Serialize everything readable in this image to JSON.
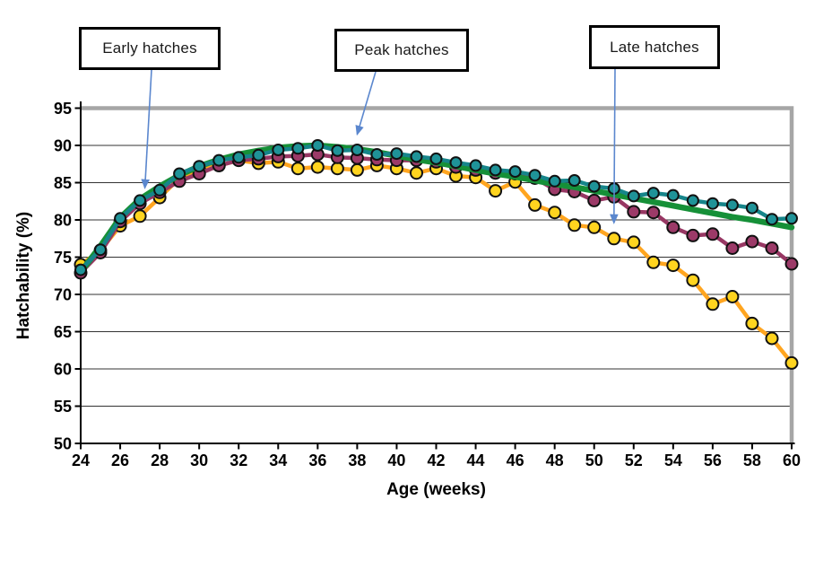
{
  "chart_data": {
    "type": "line",
    "title": "",
    "xlabel": "Age (weeks)",
    "ylabel": "Hatchability (%)",
    "xlim": [
      24,
      60
    ],
    "ylim": [
      50,
      95
    ],
    "x_ticks": [
      24,
      26,
      28,
      30,
      32,
      34,
      36,
      38,
      40,
      42,
      44,
      46,
      48,
      50,
      52,
      54,
      56,
      58,
      60
    ],
    "y_ticks": [
      50,
      55,
      60,
      65,
      70,
      75,
      80,
      85,
      90,
      95
    ],
    "grid": true,
    "legend": "none",
    "axis_color": "#000000",
    "plot_border_color": "#A6A6A6",
    "annotation_arrow_color": "#5B87CE",
    "x": [
      24,
      25,
      26,
      27,
      28,
      29,
      30,
      31,
      32,
      33,
      34,
      35,
      36,
      37,
      38,
      39,
      40,
      41,
      42,
      43,
      44,
      45,
      46,
      47,
      48,
      49,
      50,
      51,
      52,
      53,
      54,
      55,
      56,
      57,
      58,
      59,
      60
    ],
    "series": [
      {
        "name": "gold-circle-series",
        "line_color": "#FFA51F",
        "marker_fill": "#FFD41F",
        "line_width": 4.5,
        "marker_radius": 6.5,
        "values": [
          74.0,
          75.9,
          79.2,
          80.5,
          83.0,
          85.6,
          86.8,
          87.3,
          88.0,
          87.6,
          87.8,
          86.9,
          87.1,
          86.9,
          86.7,
          87.3,
          86.9,
          86.3,
          86.9,
          85.9,
          85.7,
          83.9,
          85.1,
          82.0,
          81.0,
          79.3,
          79.0,
          77.5,
          77.0,
          74.3,
          73.9,
          71.9,
          68.7,
          69.7,
          66.1,
          64.1,
          60.8
        ]
      },
      {
        "name": "plum-circle-series",
        "line_color": "#973763",
        "marker_fill": "#9C3A68",
        "line_width": 4.5,
        "marker_radius": 6.5,
        "values": [
          72.9,
          75.6,
          79.8,
          82.2,
          83.7,
          85.2,
          86.2,
          87.3,
          88.0,
          88.2,
          88.5,
          88.6,
          88.8,
          88.4,
          88.3,
          88.1,
          88.0,
          88.0,
          87.8,
          87.1,
          86.7,
          86.3,
          86.2,
          85.6,
          84.1,
          83.8,
          82.6,
          83.1,
          81.1,
          81.0,
          79.0,
          77.9,
          78.1,
          76.2,
          77.1,
          76.2,
          74.1
        ]
      },
      {
        "name": "green-trend-line",
        "line_color": "#169038",
        "marker_fill": null,
        "line_width": 6.5,
        "marker_radius": 0,
        "values": [
          73.0,
          76.5,
          80.3,
          82.8,
          84.5,
          86.0,
          87.2,
          88.1,
          88.8,
          89.3,
          89.7,
          89.9,
          90.0,
          89.8,
          89.5,
          89.1,
          88.6,
          88.1,
          87.7,
          87.2,
          86.7,
          86.2,
          85.8,
          85.3,
          84.8,
          84.4,
          83.9,
          83.4,
          82.9,
          82.4,
          81.9,
          81.4,
          80.9,
          80.4,
          80.0,
          79.5,
          79.0
        ]
      },
      {
        "name": "teal-circle-series",
        "line_color": "#16858A",
        "marker_fill": "#1F9398",
        "line_width": 4.5,
        "marker_radius": 6,
        "values": [
          73.3,
          76.0,
          80.2,
          82.6,
          84.0,
          86.2,
          87.2,
          88.0,
          88.4,
          88.7,
          89.4,
          89.6,
          90.0,
          89.3,
          89.4,
          88.8,
          88.9,
          88.5,
          88.2,
          87.7,
          87.3,
          86.7,
          86.5,
          86.0,
          85.2,
          85.3,
          84.5,
          84.2,
          83.2,
          83.6,
          83.3,
          82.6,
          82.2,
          82.0,
          81.6,
          80.1,
          80.2
        ]
      }
    ],
    "annotations": [
      {
        "label": "Early hatches",
        "points_to_week": 27.25,
        "points_to_value": 84.3
      },
      {
        "label": "Peak hatches",
        "points_to_week": 38.0,
        "points_to_value": 91.5
      },
      {
        "label": "Late hatches",
        "points_to_week": 51.0,
        "points_to_value": 79.6
      }
    ]
  }
}
